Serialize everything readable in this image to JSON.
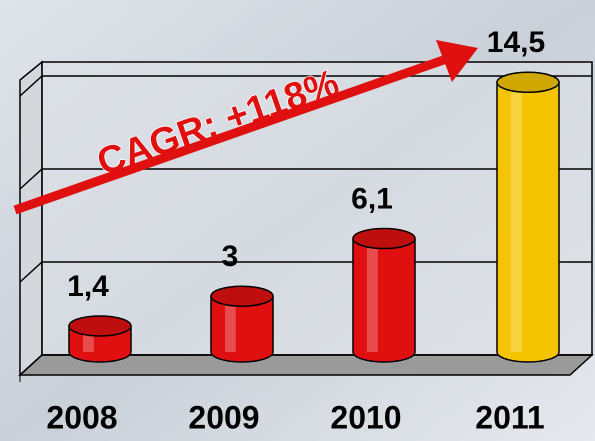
{
  "chart_data": {
    "type": "bar",
    "categories": [
      "2008",
      "2009",
      "2010",
      "2011"
    ],
    "values": [
      1.4,
      3,
      6.1,
      14.5
    ],
    "value_labels": [
      "1,4",
      "3",
      "6,1",
      "14,5"
    ],
    "colors": [
      "#e01010",
      "#e01010",
      "#e01010",
      "#f5c400"
    ],
    "ylim": [
      0,
      15
    ],
    "yticks": [
      0,
      5,
      10,
      15
    ],
    "grid": true,
    "annotation": "CAGR: +118%"
  }
}
